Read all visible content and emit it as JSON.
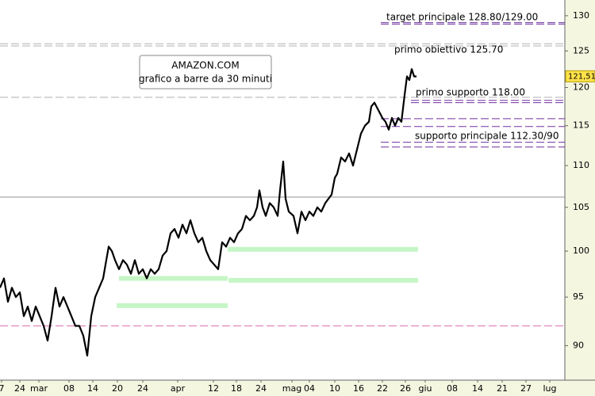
{
  "chart_data": {
    "type": "line",
    "title": "AMAZON.COM",
    "subtitle": "grafico a barre da 30 minuti",
    "log_scale": true,
    "grid": false,
    "color": "#000000",
    "ylim": [
      86.6,
      132.3
    ],
    "yticks": [
      90,
      95,
      100,
      105,
      110,
      115,
      120,
      125,
      130
    ],
    "xlim": [
      0,
      712
    ],
    "xticks": [
      {
        "value": 2,
        "label": "7"
      },
      {
        "value": 25,
        "label": "24"
      },
      {
        "value": 49,
        "label": "mar"
      },
      {
        "value": 87,
        "label": "08"
      },
      {
        "value": 117,
        "label": "14"
      },
      {
        "value": 148,
        "label": "20"
      },
      {
        "value": 180,
        "label": "24"
      },
      {
        "value": 224,
        "label": "apr"
      },
      {
        "value": 269,
        "label": "12"
      },
      {
        "value": 298,
        "label": "18"
      },
      {
        "value": 329,
        "label": "24"
      },
      {
        "value": 368,
        "label": "mag"
      },
      {
        "value": 390,
        "label": "04"
      },
      {
        "value": 422,
        "label": "10"
      },
      {
        "value": 452,
        "label": "16"
      },
      {
        "value": 482,
        "label": "22"
      },
      {
        "value": 511,
        "label": "26"
      },
      {
        "value": 536,
        "label": "giu"
      },
      {
        "value": 570,
        "label": "08"
      },
      {
        "value": 602,
        "label": "14"
      },
      {
        "value": 633,
        "label": "21"
      },
      {
        "value": 663,
        "label": "27"
      },
      {
        "value": 693,
        "label": "lug"
      }
    ],
    "x": [
      0,
      5,
      10,
      15,
      20,
      25,
      30,
      35,
      40,
      45,
      50,
      55,
      60,
      65,
      70,
      75,
      80,
      85,
      90,
      95,
      100,
      105,
      110,
      115,
      120,
      125,
      130,
      134,
      137,
      141,
      145,
      150,
      155,
      160,
      165,
      170,
      175,
      180,
      185,
      190,
      195,
      200,
      205,
      210,
      215,
      220,
      225,
      230,
      235,
      240,
      245,
      250,
      255,
      260,
      265,
      270,
      275,
      280,
      285,
      290,
      295,
      300,
      305,
      310,
      315,
      320,
      324,
      327,
      331,
      335,
      340,
      345,
      350,
      353,
      357,
      360,
      364,
      370,
      375,
      380,
      385,
      390,
      395,
      400,
      405,
      410,
      414,
      418,
      422,
      425,
      430,
      435,
      440,
      445,
      450,
      455,
      460,
      465,
      468,
      472,
      477,
      482,
      486,
      490,
      494,
      498,
      502,
      506,
      510,
      513,
      516,
      519,
      522,
      525
    ],
    "values": [
      96,
      97,
      94.5,
      96,
      95,
      95.5,
      93,
      94,
      92.5,
      94,
      93,
      92,
      90.5,
      93,
      96,
      94,
      95,
      94,
      93,
      92,
      92,
      91,
      89,
      93,
      95,
      96,
      97,
      99,
      100.5,
      100,
      99,
      98,
      99,
      98.5,
      97.5,
      99,
      97.5,
      98,
      97,
      98,
      97.5,
      98,
      99.5,
      100,
      102,
      102.5,
      101.5,
      103,
      102,
      103.5,
      102,
      101,
      101.5,
      100,
      99,
      98.5,
      98,
      101,
      100.5,
      101.5,
      101,
      102,
      102.5,
      104,
      103.5,
      104,
      105,
      107,
      105,
      104,
      105.5,
      105,
      104,
      107,
      110.5,
      106,
      104.5,
      104,
      102,
      104.5,
      103.5,
      104.5,
      104,
      105,
      104.5,
      105.5,
      106,
      106.5,
      108.5,
      109,
      111,
      110.5,
      111.5,
      110,
      112,
      114,
      115,
      115.5,
      117.5,
      118,
      117,
      116,
      115.5,
      114.5,
      116,
      115,
      116,
      115.5,
      119,
      121.5,
      121,
      122.5,
      121.5,
      121.5
    ],
    "last_price": {
      "value": 121.51,
      "label": "121,51"
    },
    "levels": [
      {
        "value": 129.0,
        "x": [
          480,
          712
        ],
        "color": "#7030a0",
        "style": "dashed"
      },
      {
        "value": 128.8,
        "x": [
          480,
          712
        ],
        "color": "#7030a0",
        "style": "dashed"
      },
      {
        "value": 126.0,
        "x": [
          0,
          712
        ],
        "color": "#b0b0b0",
        "style": "dashed"
      },
      {
        "value": 125.7,
        "x": [
          0,
          712
        ],
        "color": "#b0b0b0",
        "style": "dashed"
      },
      {
        "value": 118.7,
        "x": [
          0,
          712
        ],
        "color": "#b0b0b0",
        "style": "dashed"
      },
      {
        "value": 118.3,
        "x": [
          518,
          712
        ],
        "color": "#7030a0",
        "style": "dashed"
      },
      {
        "value": 118.0,
        "x": [
          518,
          712
        ],
        "color": "#7030a0",
        "style": "dashed"
      },
      {
        "value": 115.9,
        "x": [
          480,
          712
        ],
        "color": "#7030a0",
        "style": "dashed"
      },
      {
        "value": 114.9,
        "x": [
          480,
          712
        ],
        "color": "#7030a0",
        "style": "dashed"
      },
      {
        "value": 112.9,
        "x": [
          480,
          712
        ],
        "color": "#7030a0",
        "style": "dashed"
      },
      {
        "value": 112.3,
        "x": [
          480,
          712
        ],
        "color": "#7030a0",
        "style": "dashed"
      },
      {
        "value": 106.2,
        "x": [
          0,
          712
        ],
        "color": "#909090",
        "style": "solid"
      },
      {
        "value": 92.0,
        "x": [
          0,
          712
        ],
        "color": "#e070b0",
        "style": "dashed"
      }
    ],
    "zones": [
      {
        "value": 100.2,
        "x": [
          287,
          527
        ],
        "color": "#c6f5c6"
      },
      {
        "value": 97.0,
        "x": [
          150,
          287
        ],
        "color": "#c6f5c6"
      },
      {
        "value": 96.8,
        "x": [
          288,
          527
        ],
        "color": "#c6f5c6"
      },
      {
        "value": 94.1,
        "x": [
          147,
          287
        ],
        "color": "#c6f5c6"
      }
    ],
    "annotations": [
      "target principale 128.80/129.00",
      "primo obiettivo 125.70",
      "primo supporto 118.00",
      "supporto principale 112.30/90"
    ]
  }
}
